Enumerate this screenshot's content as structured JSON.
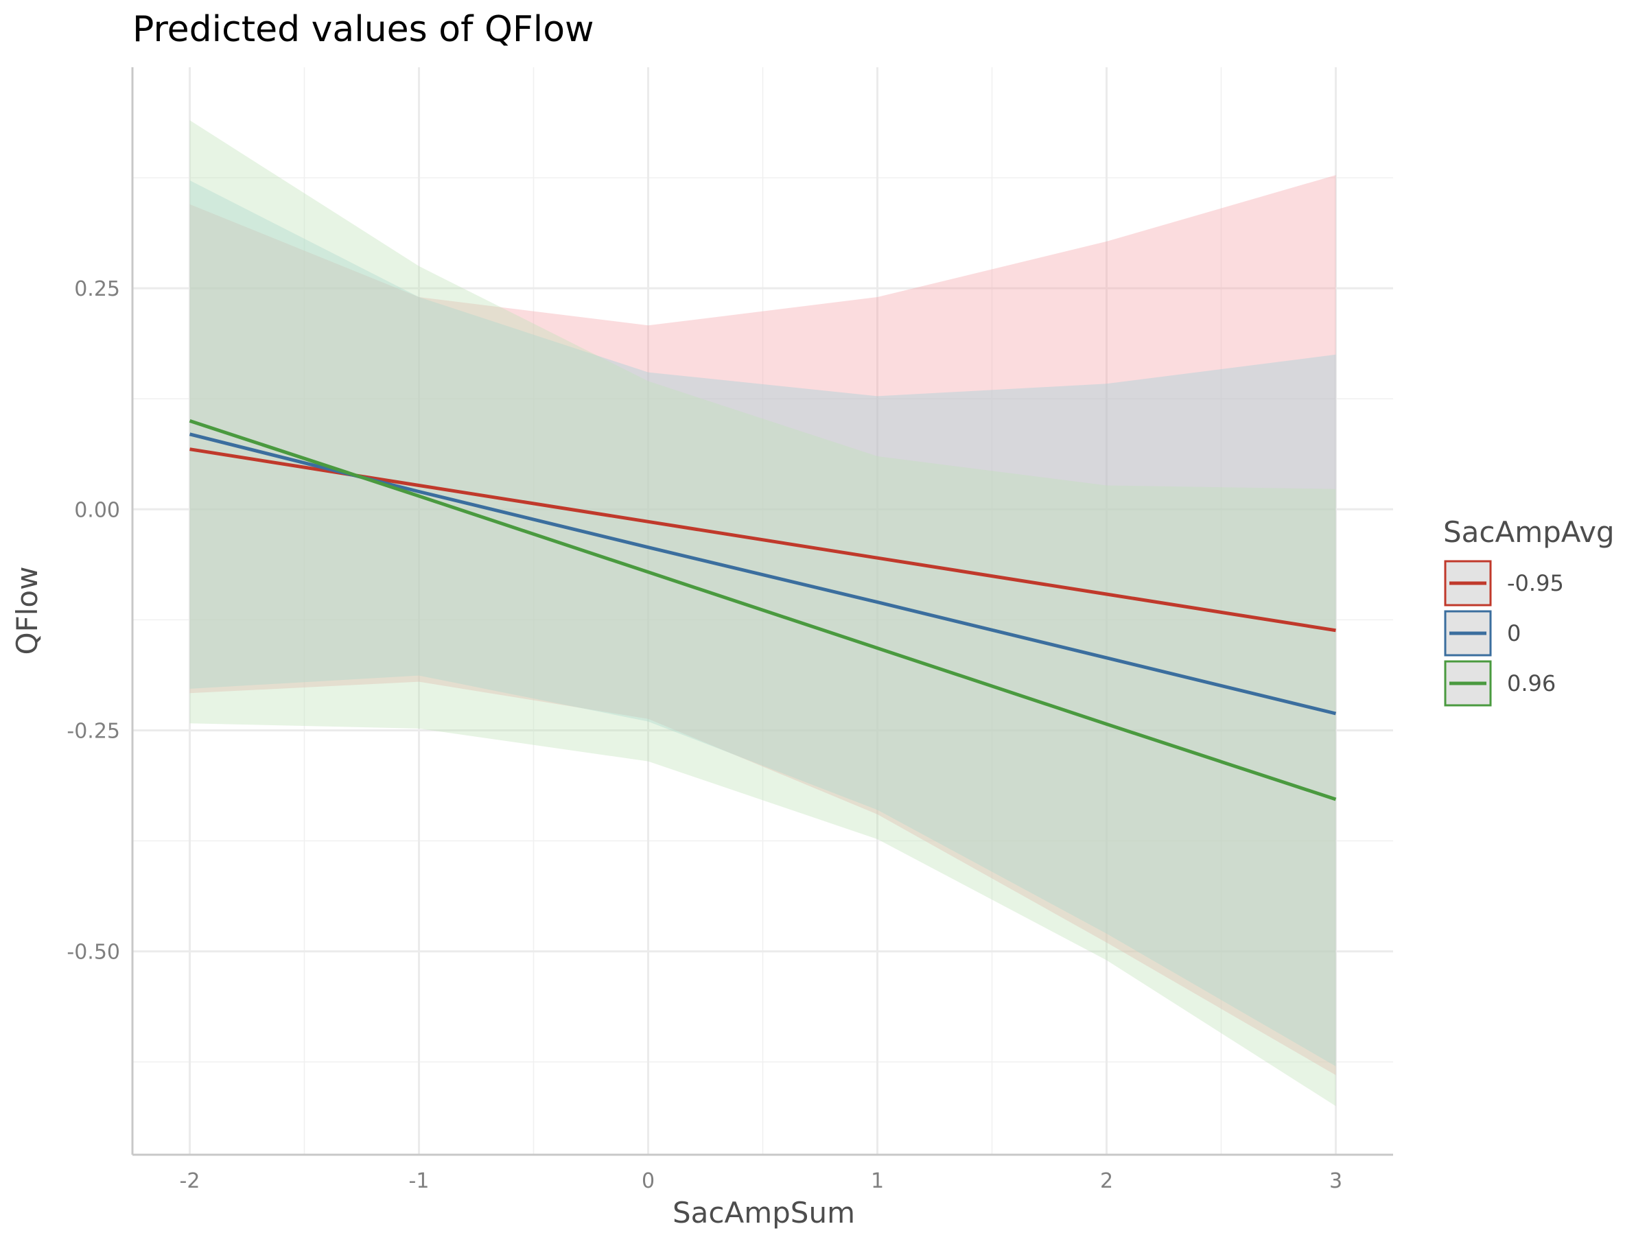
{
  "chart_data": {
    "type": "line",
    "title": "Predicted values of QFlow",
    "xlabel": "SacAmpSum",
    "ylabel": "QFlow",
    "x": [
      -2,
      -1,
      0,
      1,
      2,
      3
    ],
    "x_ticks": [
      -2,
      -1,
      0,
      1,
      2,
      3
    ],
    "x_tick_labels": [
      "-2",
      "-1",
      "0",
      "1",
      "2",
      "3"
    ],
    "y_ticks": [
      0.25,
      0.0,
      -0.25,
      -0.5
    ],
    "y_tick_labels": [
      "0.25",
      "0.00",
      "-0.25",
      "-0.50"
    ],
    "xlim": [
      -2.25,
      3.25
    ],
    "ylim": [
      -0.73,
      0.5
    ],
    "grid": true,
    "legend": {
      "title": "SacAmpAvg",
      "placement": "right"
    },
    "series": [
      {
        "name": "-0.95",
        "color": "#c0392b",
        "fill_color": "#f4a3a8",
        "values": [
          0.068,
          0.027,
          -0.014,
          -0.055,
          -0.096,
          -0.137
        ],
        "ci_upper": [
          0.345,
          0.24,
          0.208,
          0.24,
          0.303,
          0.378
        ],
        "ci_lower": [
          -0.208,
          -0.195,
          -0.237,
          -0.345,
          -0.49,
          -0.64
        ]
      },
      {
        "name": "0",
        "color": "#3b6e9e",
        "fill_color": "#9ecfd8",
        "values": [
          0.085,
          0.02,
          -0.043,
          -0.105,
          -0.168,
          -0.231
        ],
        "ci_upper": [
          0.372,
          0.24,
          0.155,
          0.128,
          0.142,
          0.175
        ],
        "ci_lower": [
          -0.203,
          -0.188,
          -0.24,
          -0.34,
          -0.48,
          -0.63
        ]
      },
      {
        "name": "0.96",
        "color": "#4a9a3f",
        "fill_color": "#bfe2b9",
        "values": [
          0.1,
          0.015,
          -0.071,
          -0.157,
          -0.243,
          -0.328
        ],
        "ci_upper": [
          0.44,
          0.275,
          0.145,
          0.06,
          0.027,
          0.023
        ],
        "ci_lower": [
          -0.242,
          -0.248,
          -0.285,
          -0.373,
          -0.51,
          -0.675
        ]
      }
    ]
  }
}
